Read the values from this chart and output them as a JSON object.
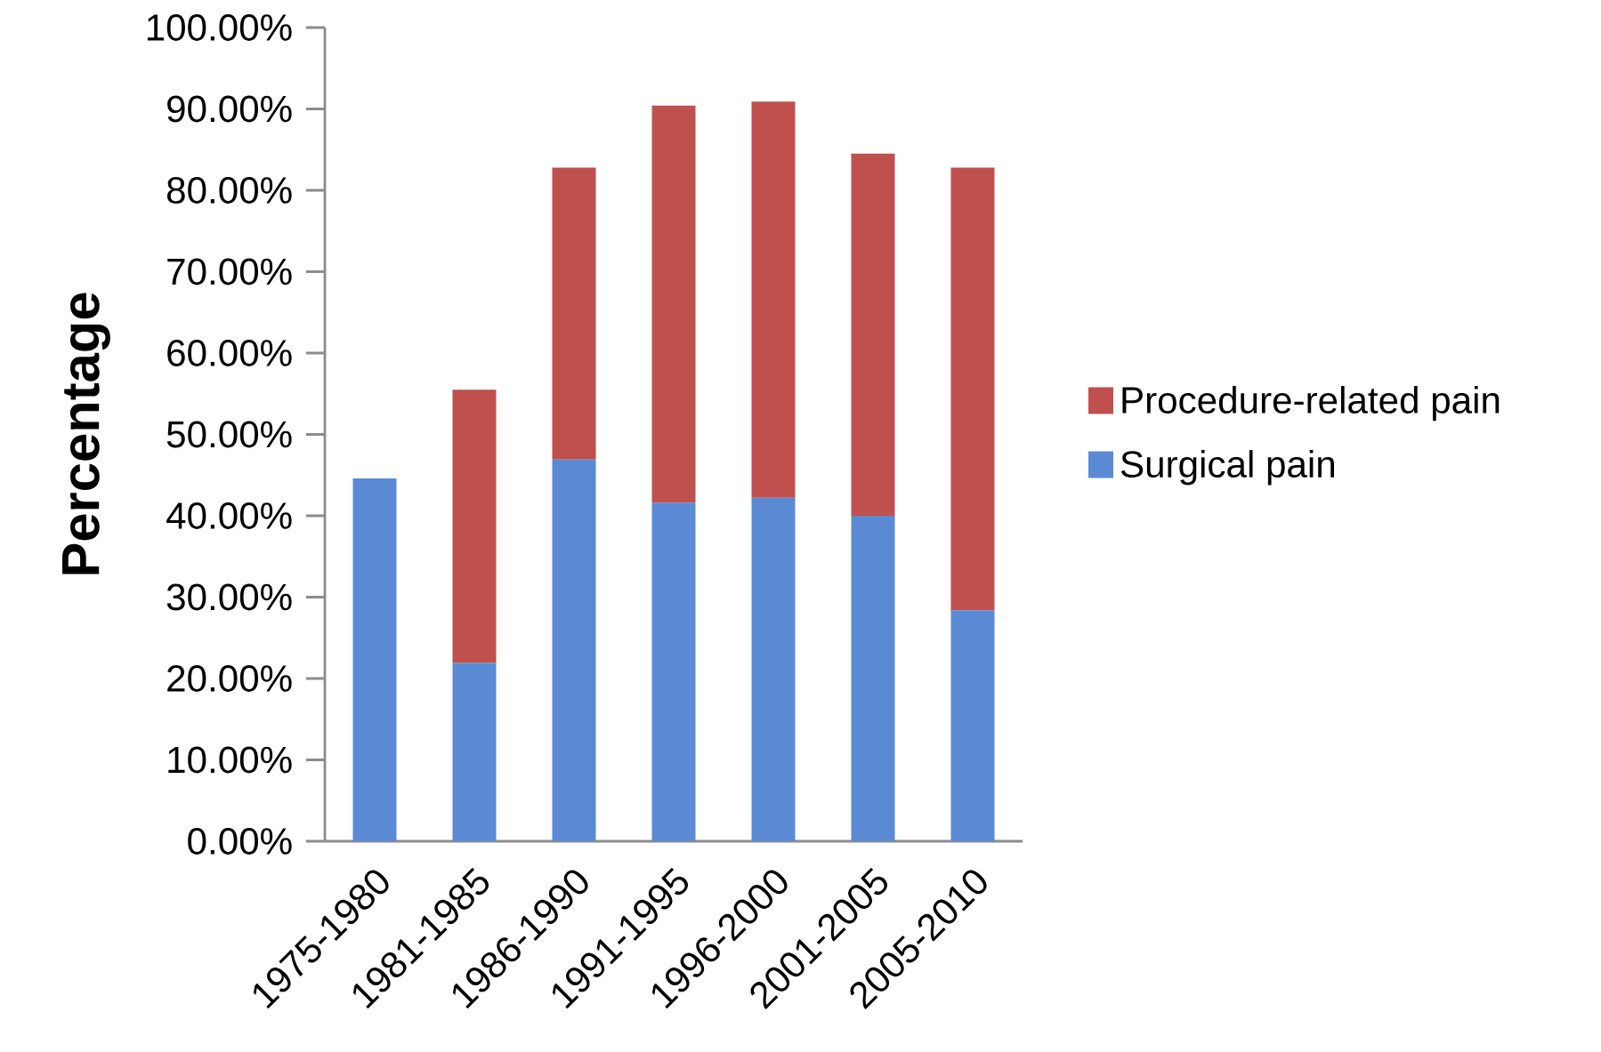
{
  "chart_data": {
    "type": "bar",
    "stacked": true,
    "ylabel": "Percentage",
    "categories": [
      "1975-1980",
      "1981-1985",
      "1986-1990",
      "1991-1995",
      "1996-2000",
      "2001-2005",
      "2005-2010"
    ],
    "series": [
      {
        "name": "Surgical pain",
        "color": "#5a8ad4",
        "values": [
          44.6,
          21.9,
          46.9,
          41.6,
          42.2,
          40.0,
          28.4
        ]
      },
      {
        "name": "Procedure-related pain",
        "color": "#c0504d",
        "values": [
          null,
          33.6,
          35.9,
          48.8,
          48.7,
          44.5,
          54.4
        ]
      }
    ],
    "ylim": [
      0,
      100
    ],
    "yticks": [
      {
        "value": 0,
        "label": "0.00%"
      },
      {
        "value": 10,
        "label": "10.00%"
      },
      {
        "value": 20,
        "label": "20.00%"
      },
      {
        "value": 30,
        "label": "30.00%"
      },
      {
        "value": 40,
        "label": "40.00%"
      },
      {
        "value": 50,
        "label": "50.00%"
      },
      {
        "value": 60,
        "label": "60.00%"
      },
      {
        "value": 70,
        "label": "70.00%"
      },
      {
        "value": 80,
        "label": "80.00%"
      },
      {
        "value": 90,
        "label": "90.00%"
      },
      {
        "value": 100,
        "label": "100.00%"
      }
    ],
    "legend": "right",
    "grid": false
  }
}
